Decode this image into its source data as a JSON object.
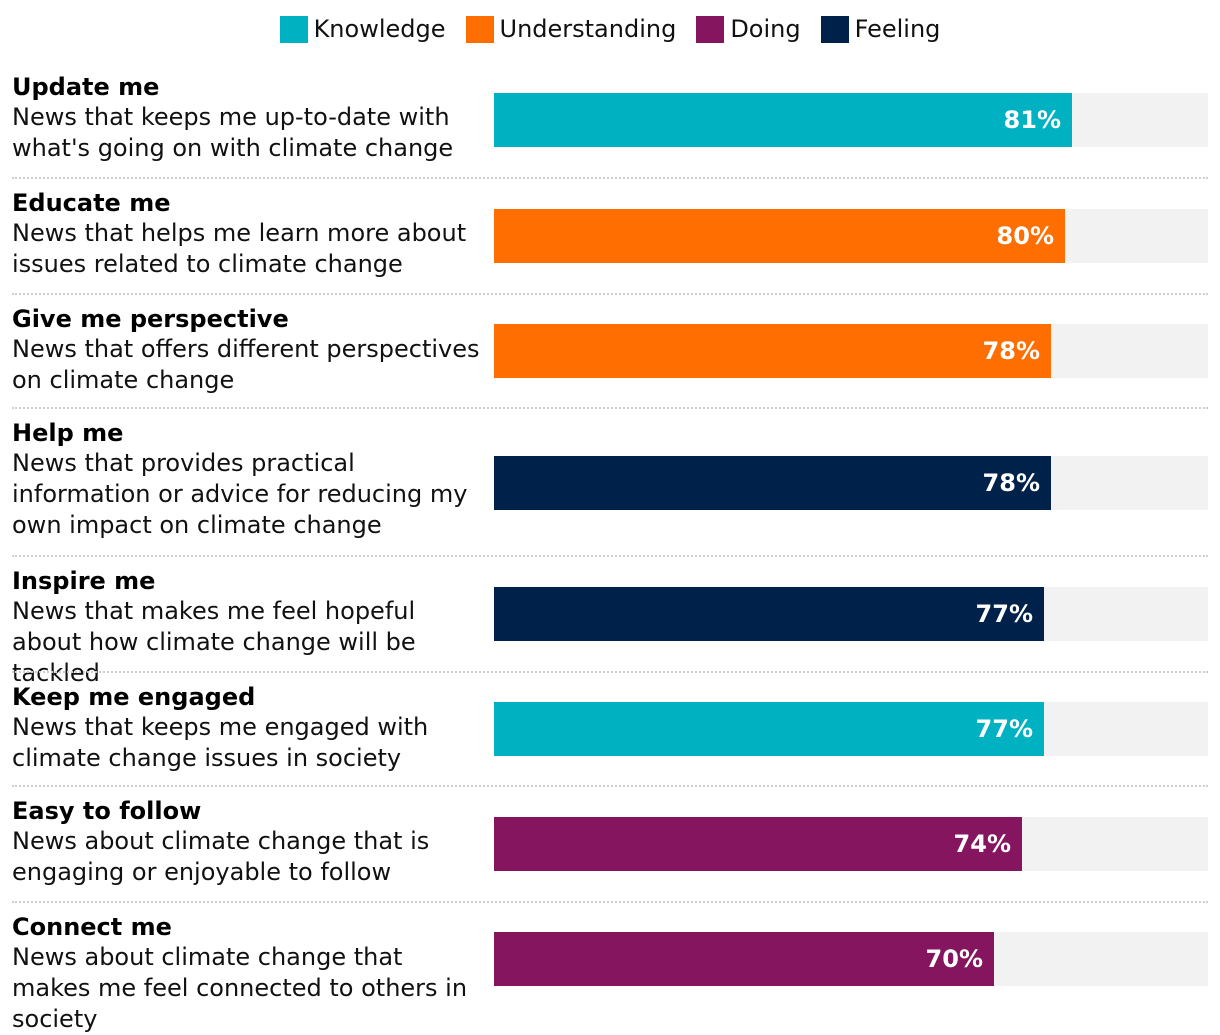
{
  "legend": [
    {
      "label": "Knowledge",
      "color": "#00b1c1"
    },
    {
      "label": "Understanding",
      "color": "#ff6e00"
    },
    {
      "label": "Doing",
      "color": "#84155e"
    },
    {
      "label": "Feeling",
      "color": "#00224a"
    }
  ],
  "chart_data": {
    "type": "bar",
    "orientation": "horizontal",
    "xlim": [
      0,
      100
    ],
    "unit": "%",
    "categories": [
      {
        "title": "Update me",
        "description": "News that keeps me up-to-date with what's going on with climate change",
        "value": 81,
        "label": "81%",
        "group": "Knowledge",
        "color": "#00b1c1"
      },
      {
        "title": "Educate me",
        "description": "News that helps me learn more about issues related to climate change",
        "value": 80,
        "label": "80%",
        "group": "Understanding",
        "color": "#ff6e00"
      },
      {
        "title": "Give me perspective",
        "description": "News that offers different perspectives on climate change",
        "value": 78,
        "label": "78%",
        "group": "Understanding",
        "color": "#ff6e00"
      },
      {
        "title": "Help me",
        "description": "News that provides practical information or advice for reducing my own impact on climate change",
        "value": 78,
        "label": "78%",
        "group": "Feeling",
        "color": "#00224a"
      },
      {
        "title": "Inspire me",
        "description": "News that makes me feel hopeful about how climate change will be tackled",
        "value": 77,
        "label": "77%",
        "group": "Feeling",
        "color": "#00224a"
      },
      {
        "title": "Keep me engaged",
        "description": "News that keeps me engaged with climate change issues in society",
        "value": 77,
        "label": "77%",
        "group": "Knowledge",
        "color": "#00b1c1"
      },
      {
        "title": "Easy to follow",
        "description": "News about climate change that is engaging or enjoyable to follow",
        "value": 74,
        "label": "74%",
        "group": "Doing",
        "color": "#84155e"
      },
      {
        "title": "Connect me",
        "description": "News about climate change that makes me feel connected to others in society",
        "value": 70,
        "label": "70%",
        "group": "Doing",
        "color": "#84155e"
      }
    ]
  }
}
